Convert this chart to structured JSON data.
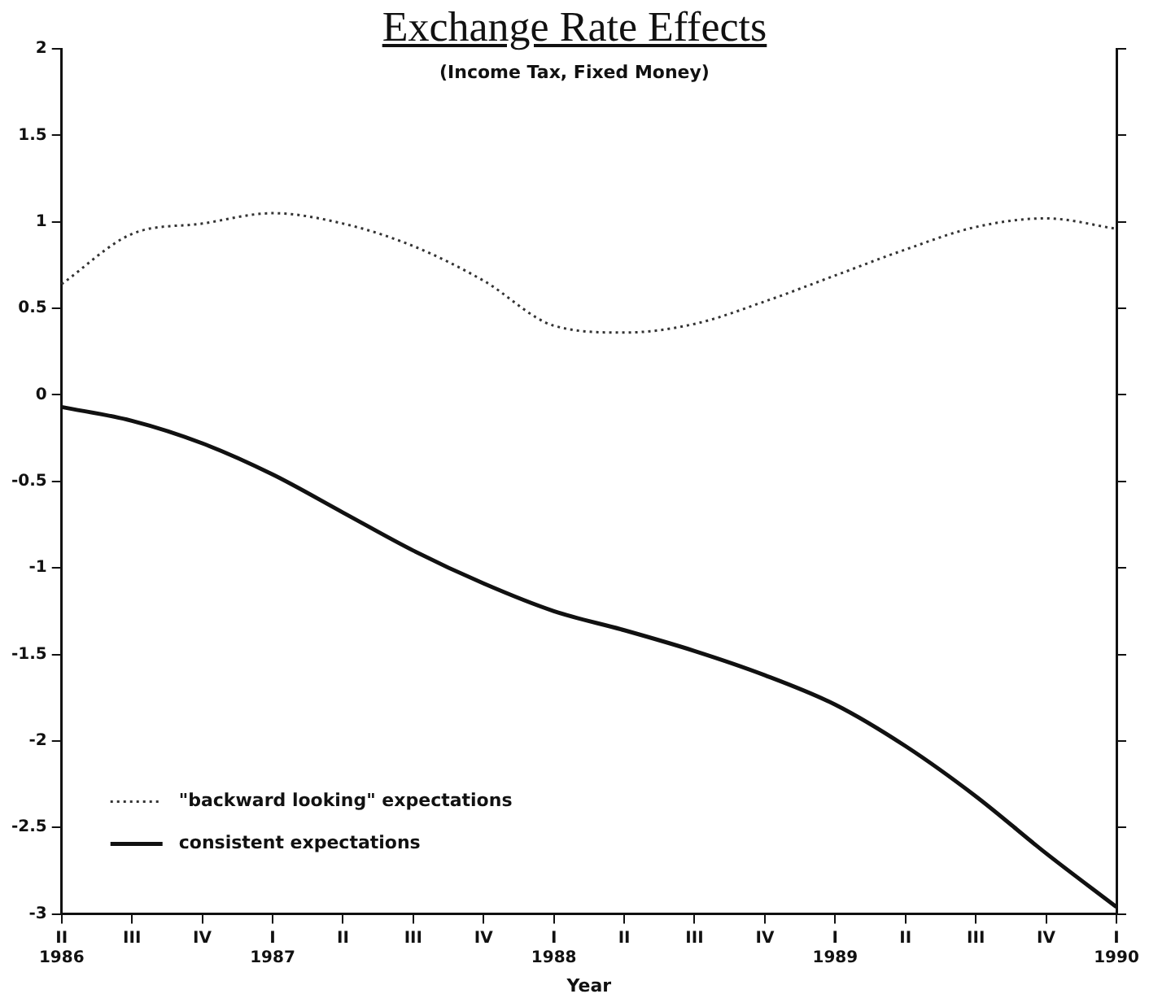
{
  "chart_data": {
    "type": "line",
    "title": "Exchange Rate Effects",
    "subtitle": "(Income Tax, Fixed Money)",
    "xlabel": "Year",
    "categories": [
      "II\n1986",
      "III",
      "IV",
      "I\n1987",
      "II",
      "III",
      "IV",
      "I\n1988",
      "II",
      "III",
      "IV",
      "I\n1989",
      "II",
      "III",
      "IV",
      "I\n1990"
    ],
    "series": [
      {
        "name": "\"backward looking\" expectations",
        "color": "#333333",
        "line_style": "dotted",
        "values": [
          0.64,
          0.93,
          0.99,
          1.05,
          0.99,
          0.86,
          0.66,
          0.4,
          0.36,
          0.41,
          0.54,
          0.69,
          0.84,
          0.97,
          1.02,
          0.96
        ]
      },
      {
        "name": "consistent expectations",
        "color": "#111111",
        "line_style": "solid",
        "values": [
          -0.07,
          -0.15,
          -0.28,
          -0.46,
          -0.68,
          -0.9,
          -1.09,
          -1.25,
          -1.36,
          -1.48,
          -1.62,
          -1.79,
          -2.03,
          -2.32,
          -2.65,
          -2.96
        ]
      }
    ],
    "ylim": [
      -3,
      2
    ],
    "yticks": [
      -3,
      -2.5,
      -2,
      -1.5,
      -1,
      -0.5,
      0,
      0.5,
      1,
      1.5,
      2
    ],
    "legend": "bottom left",
    "marker": "none"
  }
}
